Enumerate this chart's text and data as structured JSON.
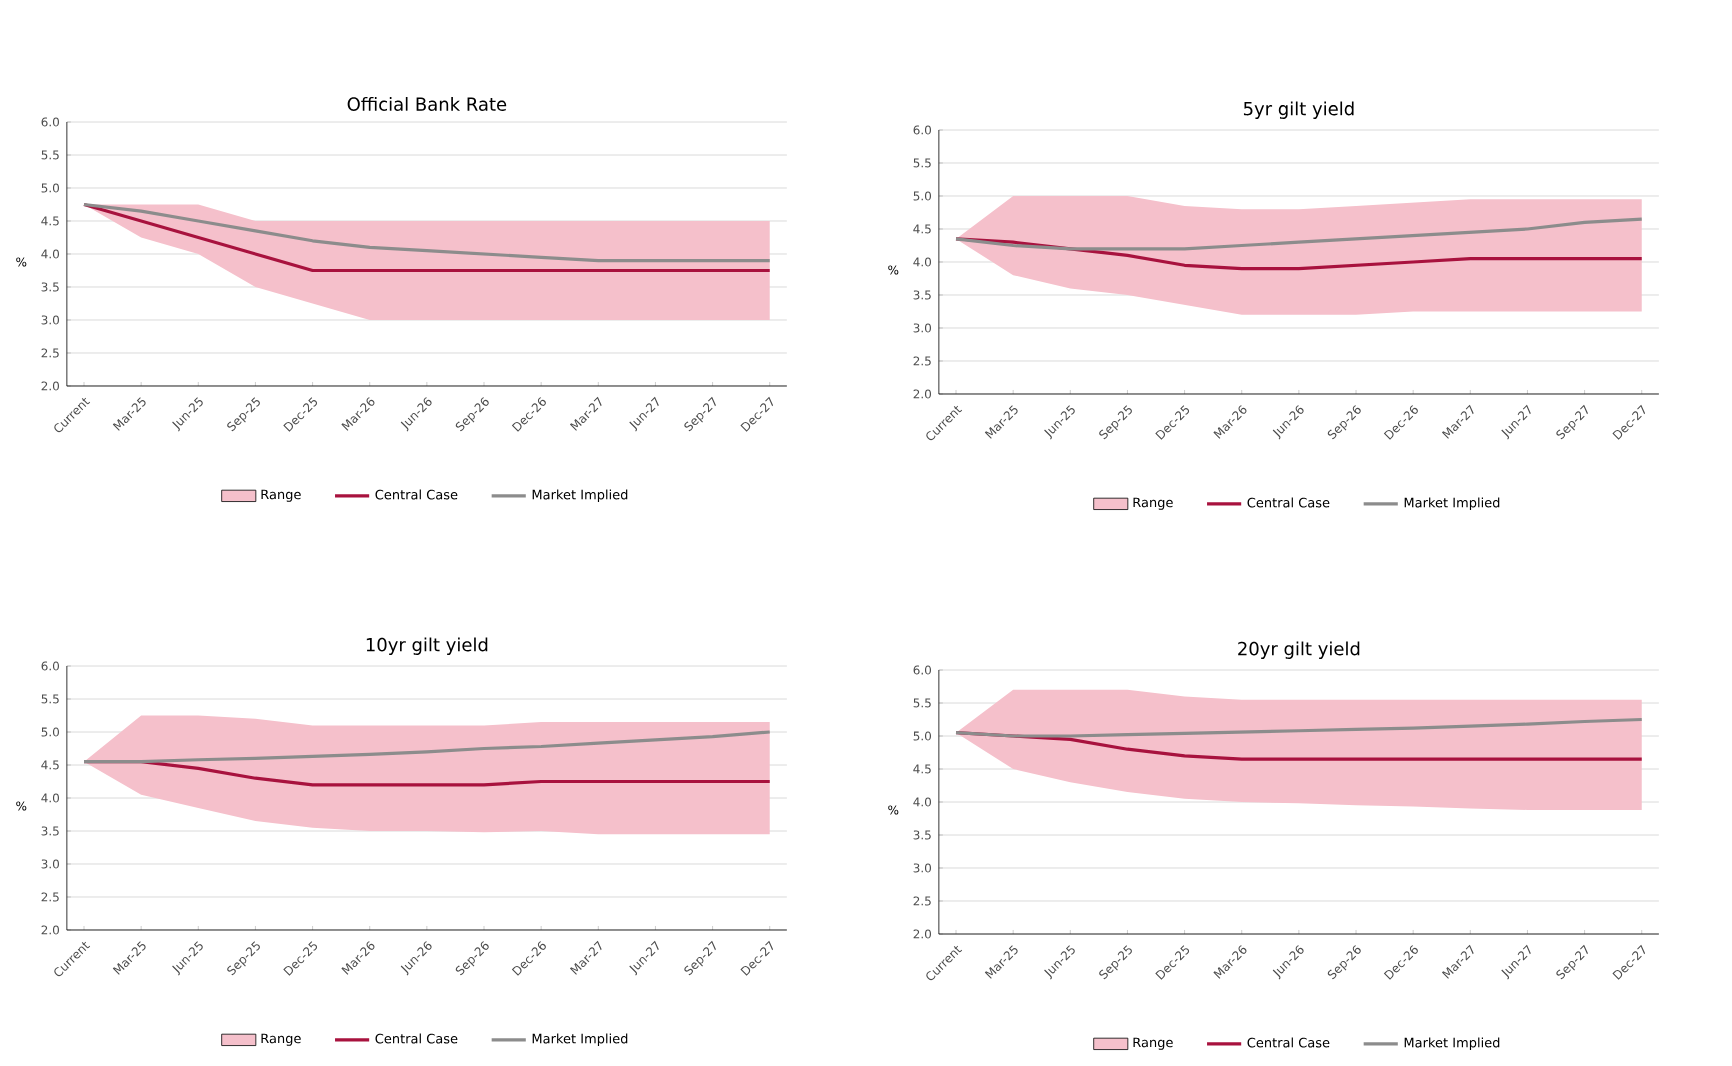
{
  "chart_data": [
    {
      "type": "line",
      "title": "Official Bank Rate",
      "ylabel": "%",
      "categories": [
        "Current",
        "Mar-25",
        "Jun-25",
        "Sep-25",
        "Dec-25",
        "Mar-26",
        "Jun-26",
        "Sep-26",
        "Dec-26",
        "Mar-27",
        "Jun-27",
        "Sep-27",
        "Dec-27"
      ],
      "ylim": [
        2,
        6
      ],
      "yticks": [
        {
          "value": 2,
          "label": "2.0"
        },
        {
          "value": 2.5,
          "label": "2.5"
        },
        {
          "value": 3,
          "label": "3.0"
        },
        {
          "value": 3.5,
          "label": "3.5"
        },
        {
          "value": 4,
          "label": "4.0"
        },
        {
          "value": 4.5,
          "label": "4.5"
        },
        {
          "value": 5,
          "label": "5.0"
        },
        {
          "value": 5.5,
          "label": "5.5"
        },
        {
          "value": 6,
          "label": "6.0"
        }
      ],
      "grid": "y",
      "legend": "bottom",
      "series": [
        {
          "name": "Range",
          "type": "area",
          "color": "#f5c0cb",
          "values": [
            null,
            null,
            null,
            null,
            null,
            null,
            null,
            null,
            null,
            null,
            null,
            null,
            null
          ],
          "lower": [
            4.75,
            4.25,
            4.0,
            3.5,
            3.25,
            3.0,
            3.0,
            3.0,
            3.0,
            3.0,
            3.0,
            3.0,
            3.0
          ],
          "upper": [
            4.75,
            4.75,
            4.75,
            4.5,
            4.5,
            4.5,
            4.5,
            4.5,
            4.5,
            4.5,
            4.5,
            4.5,
            4.5
          ]
        },
        {
          "name": "Central Case",
          "color": "#a8123e",
          "values": [
            4.75,
            4.5,
            4.25,
            4.0,
            3.75,
            3.75,
            3.75,
            3.75,
            3.75,
            3.75,
            3.75,
            3.75,
            3.75
          ]
        },
        {
          "name": "Market Implied",
          "color": "#8c8c8c",
          "values": [
            4.75,
            4.65,
            4.5,
            4.35,
            4.2,
            4.1,
            4.05,
            4.0,
            3.95,
            3.9,
            3.9,
            3.9,
            3.9
          ]
        }
      ]
    },
    {
      "type": "line",
      "title": "5yr gilt yield",
      "ylabel": "%",
      "categories": [
        "Current",
        "Mar-25",
        "Jun-25",
        "Sep-25",
        "Dec-25",
        "Mar-26",
        "Jun-26",
        "Sep-26",
        "Dec-26",
        "Mar-27",
        "Jun-27",
        "Sep-27",
        "Dec-27"
      ],
      "ylim": [
        2,
        6
      ],
      "yticks": [
        {
          "value": 2,
          "label": "2.0"
        },
        {
          "value": 2.5,
          "label": "2.5"
        },
        {
          "value": 3,
          "label": "3.0"
        },
        {
          "value": 3.5,
          "label": "3.5"
        },
        {
          "value": 4,
          "label": "4.0"
        },
        {
          "value": 4.5,
          "label": "4.5"
        },
        {
          "value": 5,
          "label": "5.0"
        },
        {
          "value": 5.5,
          "label": "5.5"
        },
        {
          "value": 6,
          "label": "6.0"
        }
      ],
      "grid": "y",
      "legend": "bottom",
      "series": [
        {
          "name": "Range",
          "type": "area",
          "color": "#f5c0cb",
          "values": [
            null,
            null,
            null,
            null,
            null,
            null,
            null,
            null,
            null,
            null,
            null,
            null,
            null
          ],
          "lower": [
            4.35,
            3.8,
            3.6,
            3.5,
            3.35,
            3.2,
            3.2,
            3.2,
            3.25,
            3.25,
            3.25,
            3.25,
            3.25
          ],
          "upper": [
            4.35,
            5.0,
            5.0,
            5.0,
            4.85,
            4.8,
            4.8,
            4.85,
            4.9,
            4.95,
            4.95,
            4.95,
            4.95
          ]
        },
        {
          "name": "Central Case",
          "color": "#a8123e",
          "values": [
            4.35,
            4.3,
            4.2,
            4.1,
            3.95,
            3.9,
            3.9,
            3.95,
            4.0,
            4.05,
            4.05,
            4.05,
            4.05
          ]
        },
        {
          "name": "Market Implied",
          "color": "#8c8c8c",
          "values": [
            4.35,
            4.25,
            4.2,
            4.2,
            4.2,
            4.25,
            4.3,
            4.35,
            4.4,
            4.45,
            4.5,
            4.6,
            4.65
          ]
        }
      ]
    },
    {
      "type": "line",
      "title": "10yr gilt yield",
      "ylabel": "%",
      "categories": [
        "Current",
        "Mar-25",
        "Jun-25",
        "Sep-25",
        "Dec-25",
        "Mar-26",
        "Jun-26",
        "Sep-26",
        "Dec-26",
        "Mar-27",
        "Jun-27",
        "Sep-27",
        "Dec-27"
      ],
      "ylim": [
        2,
        6
      ],
      "yticks": [
        {
          "value": 2,
          "label": "2.0"
        },
        {
          "value": 2.5,
          "label": "2.5"
        },
        {
          "value": 3,
          "label": "3.0"
        },
        {
          "value": 3.5,
          "label": "3.5"
        },
        {
          "value": 4,
          "label": "4.0"
        },
        {
          "value": 4.5,
          "label": "4.5"
        },
        {
          "value": 5,
          "label": "5.0"
        },
        {
          "value": 5.5,
          "label": "5.5"
        },
        {
          "value": 6,
          "label": "6.0"
        }
      ],
      "grid": "y",
      "legend": "bottom",
      "series": [
        {
          "name": "Range",
          "type": "area",
          "color": "#f5c0cb",
          "values": [
            null,
            null,
            null,
            null,
            null,
            null,
            null,
            null,
            null,
            null,
            null,
            null,
            null
          ],
          "lower": [
            4.55,
            4.05,
            3.85,
            3.65,
            3.55,
            3.5,
            3.5,
            3.48,
            3.5,
            3.45,
            3.45,
            3.45,
            3.45
          ],
          "upper": [
            4.55,
            5.25,
            5.25,
            5.2,
            5.1,
            5.1,
            5.1,
            5.1,
            5.15,
            5.15,
            5.15,
            5.15,
            5.15
          ]
        },
        {
          "name": "Central Case",
          "color": "#a8123e",
          "values": [
            4.55,
            4.55,
            4.45,
            4.3,
            4.2,
            4.2,
            4.2,
            4.2,
            4.25,
            4.25,
            4.25,
            4.25,
            4.25
          ]
        },
        {
          "name": "Market Implied",
          "color": "#8c8c8c",
          "values": [
            4.55,
            4.55,
            4.58,
            4.6,
            4.63,
            4.66,
            4.7,
            4.75,
            4.78,
            4.83,
            4.88,
            4.93,
            5.0
          ]
        }
      ]
    },
    {
      "type": "line",
      "title": "20yr gilt yield",
      "ylabel": "%",
      "categories": [
        "Current",
        "Mar-25",
        "Jun-25",
        "Sep-25",
        "Dec-25",
        "Mar-26",
        "Jun-26",
        "Sep-26",
        "Dec-26",
        "Mar-27",
        "Jun-27",
        "Sep-27",
        "Dec-27"
      ],
      "ylim": [
        2,
        6
      ],
      "yticks": [
        {
          "value": 2,
          "label": "2.0"
        },
        {
          "value": 2.5,
          "label": "2.5"
        },
        {
          "value": 3,
          "label": "3.0"
        },
        {
          "value": 3.5,
          "label": "3.5"
        },
        {
          "value": 4,
          "label": "4.0"
        },
        {
          "value": 4.5,
          "label": "4.5"
        },
        {
          "value": 5,
          "label": "5.0"
        },
        {
          "value": 5.5,
          "label": "5.5"
        },
        {
          "value": 6,
          "label": "6.0"
        }
      ],
      "grid": "y",
      "legend": "bottom",
      "series": [
        {
          "name": "Range",
          "type": "area",
          "color": "#f5c0cb",
          "values": [
            null,
            null,
            null,
            null,
            null,
            null,
            null,
            null,
            null,
            null,
            null,
            null,
            null
          ],
          "lower": [
            5.05,
            4.5,
            4.3,
            4.15,
            4.05,
            4.0,
            3.98,
            3.95,
            3.93,
            3.9,
            3.88,
            3.88,
            3.88
          ],
          "upper": [
            5.05,
            5.7,
            5.7,
            5.7,
            5.6,
            5.55,
            5.55,
            5.55,
            5.55,
            5.55,
            5.55,
            5.55,
            5.55
          ]
        },
        {
          "name": "Central Case",
          "color": "#a8123e",
          "values": [
            5.05,
            5.0,
            4.95,
            4.8,
            4.7,
            4.65,
            4.65,
            4.65,
            4.65,
            4.65,
            4.65,
            4.65,
            4.65
          ]
        },
        {
          "name": "Market Implied",
          "color": "#8c8c8c",
          "values": [
            5.05,
            5.0,
            5.0,
            5.02,
            5.04,
            5.06,
            5.08,
            5.1,
            5.12,
            5.15,
            5.18,
            5.22,
            5.25
          ]
        }
      ]
    }
  ]
}
